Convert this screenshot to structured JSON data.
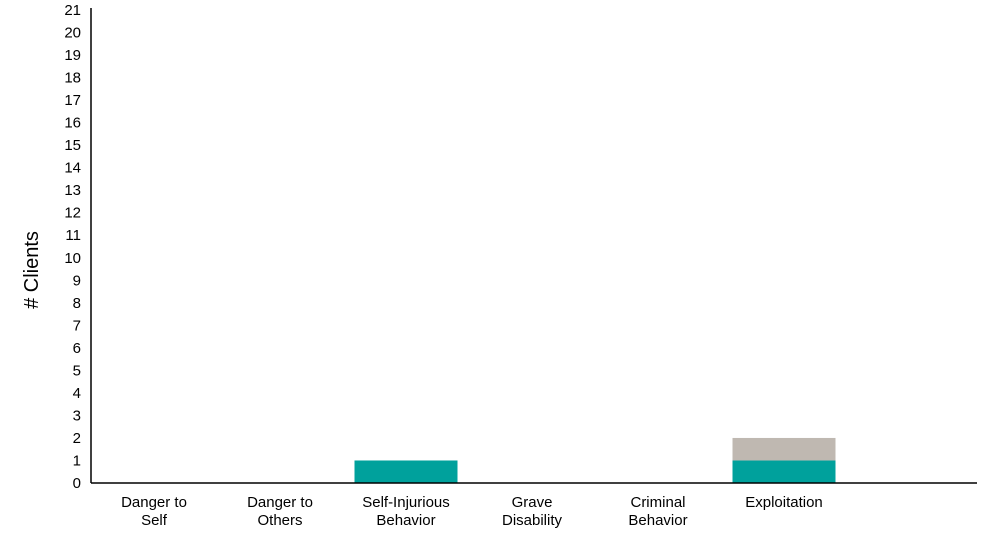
{
  "chart_data": {
    "type": "bar",
    "stacked": true,
    "title": "",
    "xlabel": "",
    "ylabel": "# Clients",
    "ylim": [
      0,
      21
    ],
    "yticks": [
      0,
      1,
      2,
      3,
      4,
      5,
      6,
      7,
      8,
      9,
      10,
      11,
      12,
      13,
      14,
      15,
      16,
      17,
      18,
      19,
      20,
      21
    ],
    "grid": false,
    "legend": "none",
    "categories": [
      [
        "Danger to",
        "Self"
      ],
      [
        "Danger to",
        "Others"
      ],
      [
        "Self-Injurious",
        "Behavior"
      ],
      [
        "Grave",
        "Disability"
      ],
      [
        "Criminal",
        "Behavior"
      ],
      [
        "Exploitation"
      ]
    ],
    "series": [
      {
        "color": "#00a19c",
        "values": [
          0,
          0,
          1,
          0,
          0,
          1
        ]
      },
      {
        "color": "#bfb8b1",
        "values": [
          0,
          0,
          0,
          0,
          0,
          1
        ]
      }
    ]
  }
}
